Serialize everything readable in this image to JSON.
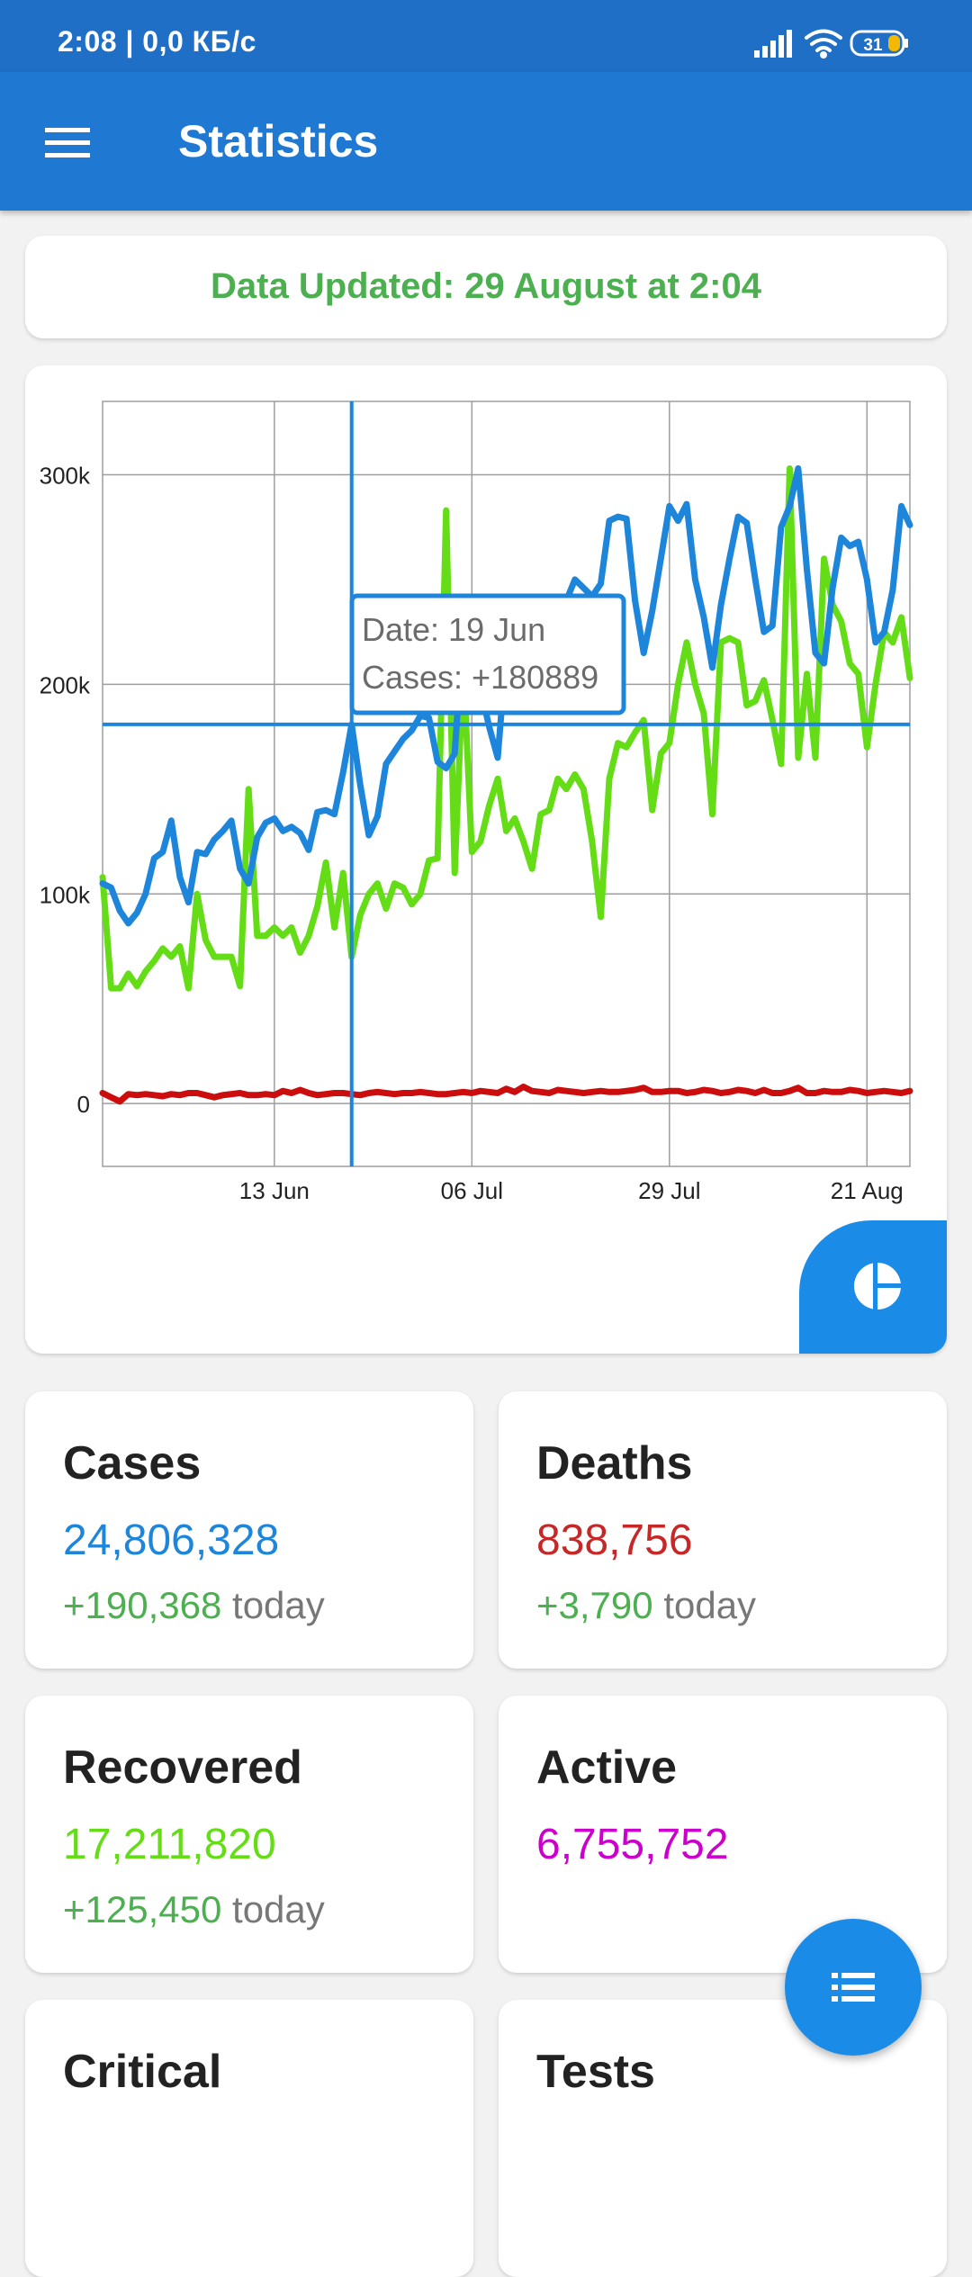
{
  "status_bar": {
    "time": "2:08 | 0,0 КБ/с",
    "battery": "31"
  },
  "app_bar": {
    "title": "Statistics",
    "menu_icon": "menu-icon"
  },
  "update_banner": {
    "text": "Data Updated: 29 August at 2:04"
  },
  "chart_data": {
    "type": "line",
    "x_tick_labels": [
      "13 Jun",
      "06 Jul",
      "29 Jul",
      "21 Aug"
    ],
    "y_tick_labels": [
      "0",
      "100k",
      "200k",
      "300k"
    ],
    "ylim": [
      -30000,
      335000
    ],
    "grid": true,
    "series": [
      {
        "name": "Cases",
        "color": "#1d86db",
        "values": [
          105000,
          103000,
          92000,
          86000,
          91000,
          100000,
          117000,
          120000,
          135000,
          108000,
          96000,
          120000,
          119000,
          126000,
          130000,
          135000,
          112000,
          105000,
          127000,
          134000,
          136000,
          130000,
          132000,
          129000,
          121000,
          139000,
          140000,
          138000,
          158000,
          180889,
          152000,
          128000,
          137000,
          162000,
          168000,
          174000,
          178000,
          185000,
          184000,
          163000,
          160000,
          167000,
          228000,
          218000,
          198000,
          180000,
          165000,
          215000,
          213000,
          208000,
          210000,
          220000,
          235000,
          230000,
          240000,
          250000,
          246000,
          242000,
          248000,
          278000,
          280000,
          279000,
          240000,
          215000,
          235000,
          260000,
          285000,
          278000,
          286000,
          250000,
          232000,
          208000,
          238000,
          260000,
          280000,
          277000,
          250000,
          225000,
          228000,
          275000,
          285000,
          303000,
          255000,
          215000,
          210000,
          246000,
          270000,
          266000,
          268000,
          250000,
          220000,
          225000,
          245000,
          285000,
          276000
        ]
      },
      {
        "name": "Recovered",
        "color": "#64dd17",
        "values": [
          108000,
          55000,
          55000,
          62000,
          56000,
          63000,
          68000,
          74000,
          70000,
          75000,
          55000,
          100000,
          78000,
          70000,
          70000,
          70000,
          56000,
          150000,
          80000,
          80000,
          84000,
          80000,
          84000,
          72000,
          80000,
          94000,
          115000,
          84000,
          110000,
          70000,
          90000,
          100000,
          105000,
          93000,
          105000,
          103000,
          95000,
          100000,
          116000,
          117000,
          283000,
          110000,
          210000,
          120000,
          125000,
          142000,
          155000,
          130000,
          136000,
          125000,
          112000,
          138000,
          140000,
          155000,
          150000,
          157000,
          150000,
          125000,
          89000,
          155000,
          172000,
          170000,
          177000,
          183000,
          140000,
          167000,
          172000,
          200000,
          220000,
          200000,
          186000,
          138000,
          220000,
          222000,
          220000,
          190000,
          192000,
          202000,
          183000,
          162000,
          303000,
          165000,
          205000,
          165000,
          260000,
          238000,
          230000,
          210000,
          205000,
          170000,
          200000,
          225000,
          220000,
          232000,
          203000
        ]
      },
      {
        "name": "Deaths",
        "color": "#cc0d0d",
        "values": [
          5000,
          3000,
          1000,
          4500,
          4000,
          4500,
          4000,
          3500,
          4500,
          4000,
          5000,
          5000,
          4000,
          3000,
          4000,
          4500,
          5000,
          4000,
          4000,
          4500,
          4000,
          6000,
          5000,
          6500,
          5000,
          4000,
          4500,
          5000,
          5000,
          4500,
          4000,
          5000,
          5500,
          5000,
          4500,
          5000,
          5000,
          5500,
          5000,
          4500,
          4500,
          5000,
          5500,
          5000,
          6000,
          5500,
          5000,
          7000,
          5500,
          8000,
          6000,
          5500,
          5000,
          6500,
          6000,
          5500,
          5000,
          5500,
          6000,
          5500,
          5500,
          6000,
          6500,
          7500,
          5500,
          5500,
          6000,
          6000,
          5000,
          5500,
          6500,
          6000,
          5000,
          5500,
          6500,
          6000,
          5000,
          6500,
          5000,
          5000,
          6000,
          7500,
          5000,
          5000,
          6000,
          5500,
          5500,
          6500,
          6000,
          5000,
          5500,
          6000,
          5500,
          5000,
          6000
        ]
      }
    ],
    "marker": {
      "date": "19 Jun",
      "cases": "+180889"
    },
    "tooltip": {
      "line1": "Date: 19 Jun",
      "line2": "Cases: +180889"
    }
  },
  "chart_fab_icon": "pie-chart-icon",
  "stats": [
    {
      "title": "Cases",
      "value": "24,806,328",
      "value_color": "#1d86db",
      "increase": "+190,368",
      "suffix": "today"
    },
    {
      "title": "Deaths",
      "value": "838,756",
      "value_color": "#c62828",
      "increase": "+3,790",
      "suffix": "today"
    },
    {
      "title": "Recovered",
      "value": "17,211,820",
      "value_color": "#64dd17",
      "increase": "+125,450",
      "suffix": "today"
    },
    {
      "title": "Active",
      "value": "6,755,752",
      "value_color": "#cc00cc"
    },
    {
      "title": "Critical"
    },
    {
      "title": "Tests"
    }
  ],
  "list_fab_icon": "list-icon"
}
